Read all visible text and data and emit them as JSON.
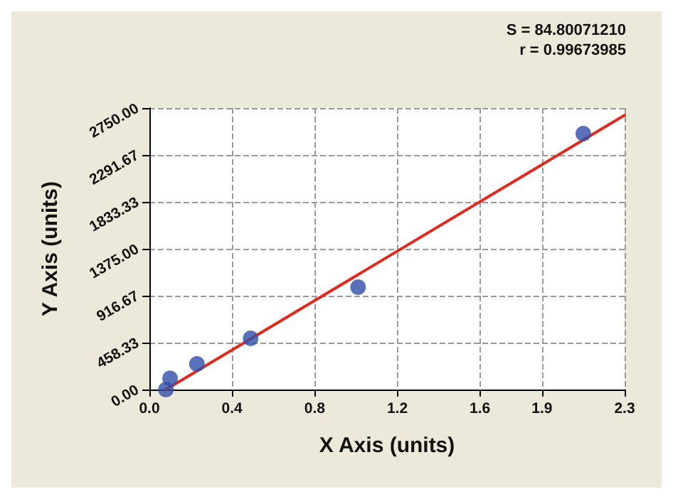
{
  "chart_data": {
    "type": "scatter",
    "xlabel": "X Axis (units)",
    "ylabel": "Y Axis (units)",
    "annotations": [
      "S = 84.80071210",
      "r = 0.99673985"
    ],
    "series": [
      {
        "color": "#2f4ea6",
        "x": [
          0.08,
          0.1,
          0.23,
          0.49,
          1.01,
          2.1
        ],
        "values": [
          0,
          110,
          250,
          500,
          1000,
          2500
        ],
        "marker": "circle"
      },
      {
        "type": "line",
        "color": "#e02a1e",
        "x": [
          0.08,
          2.3
        ],
        "values": [
          0,
          2680
        ],
        "marker": "none",
        "line_style": "solid"
      }
    ],
    "xlim": [
      0,
      2.3
    ],
    "xticks": [
      {
        "value": 0,
        "label": "0.0"
      },
      0.4,
      0.8,
      1.2,
      1.6,
      1.9,
      2.3
    ],
    "ylim": [
      0,
      2750
    ],
    "yticks": [
      {
        "value": 0,
        "label": "0.00"
      },
      {
        "value": 458.33,
        "label": "458.33"
      },
      {
        "value": 916.67,
        "label": "916.67"
      },
      {
        "value": 1375,
        "label": "1375.00"
      },
      {
        "value": 1833.33,
        "label": "1833.33"
      },
      {
        "value": 2291.67,
        "label": "2291.67"
      },
      {
        "value": 2750,
        "label": "2750.00"
      }
    ],
    "grid": true
  }
}
